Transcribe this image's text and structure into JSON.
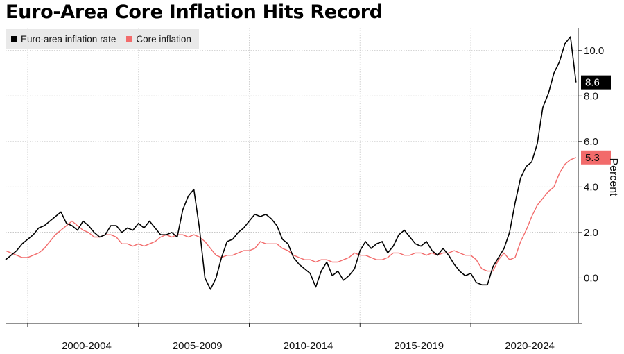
{
  "chart_data": {
    "type": "line",
    "title": "Euro-Area Core Inflation Hits Record",
    "ylabel": "Percent",
    "xlabel": "",
    "xlim": [
      1997.0,
      2022.85
    ],
    "ylim": [
      -2.0,
      11.0
    ],
    "yticks": [
      0.0,
      2.0,
      4.0,
      6.0,
      8.0,
      10.0
    ],
    "ytick_labels": [
      "0.0",
      "2.0",
      "4.0",
      "6.0",
      "8.0",
      "10.0"
    ],
    "xtick_positions": [
      1998,
      2003,
      2008,
      2013,
      2018
    ],
    "xtick_labels": [
      "2000-2004",
      "2005-2009",
      "2010-2014",
      "2015-2019",
      "2020-2024"
    ],
    "legend_position": "top-left",
    "series": [
      {
        "name": "Euro-area inflation rate",
        "color": "#000000",
        "end_label": "8.6",
        "x": [
          1997.0,
          1997.25,
          1997.5,
          1997.75,
          1998.0,
          1998.25,
          1998.5,
          1998.75,
          1999.0,
          1999.25,
          1999.5,
          1999.75,
          2000.0,
          2000.25,
          2000.5,
          2000.75,
          2001.0,
          2001.25,
          2001.5,
          2001.75,
          2002.0,
          2002.25,
          2002.5,
          2002.75,
          2003.0,
          2003.25,
          2003.5,
          2003.75,
          2004.0,
          2004.25,
          2004.5,
          2004.75,
          2005.0,
          2005.25,
          2005.5,
          2005.75,
          2006.0,
          2006.25,
          2006.5,
          2006.75,
          2007.0,
          2007.25,
          2007.5,
          2007.75,
          2008.0,
          2008.25,
          2008.5,
          2008.75,
          2009.0,
          2009.25,
          2009.5,
          2009.75,
          2010.0,
          2010.25,
          2010.5,
          2010.75,
          2011.0,
          2011.25,
          2011.5,
          2011.75,
          2012.0,
          2012.25,
          2012.5,
          2012.75,
          2013.0,
          2013.25,
          2013.5,
          2013.75,
          2014.0,
          2014.25,
          2014.5,
          2014.75,
          2015.0,
          2015.25,
          2015.5,
          2015.75,
          2016.0,
          2016.25,
          2016.5,
          2016.75,
          2017.0,
          2017.25,
          2017.5,
          2017.75,
          2018.0,
          2018.25,
          2018.5,
          2018.75,
          2019.0,
          2019.25,
          2019.5,
          2019.75,
          2020.0,
          2020.25,
          2020.5,
          2020.75,
          2021.0,
          2021.25,
          2021.5,
          2021.75,
          2022.0,
          2022.25,
          2022.5,
          2022.75
        ],
        "values": [
          0.8,
          1.0,
          1.2,
          1.5,
          1.7,
          1.9,
          2.2,
          2.3,
          2.5,
          2.7,
          2.9,
          2.4,
          2.3,
          2.1,
          2.5,
          2.3,
          2.0,
          1.8,
          1.9,
          2.3,
          2.3,
          2.0,
          2.2,
          2.1,
          2.4,
          2.2,
          2.5,
          2.2,
          1.9,
          1.9,
          2.0,
          1.8,
          3.0,
          3.6,
          3.9,
          2.2,
          0.0,
          -0.5,
          0.0,
          0.9,
          1.6,
          1.7,
          2.0,
          2.2,
          2.5,
          2.8,
          2.7,
          2.8,
          2.6,
          2.3,
          1.7,
          1.5,
          0.9,
          0.6,
          0.4,
          0.2,
          -0.4,
          0.3,
          0.7,
          0.1,
          0.3,
          -0.1,
          0.1,
          0.4,
          1.2,
          1.6,
          1.3,
          1.5,
          1.6,
          1.1,
          1.4,
          1.9,
          2.1,
          1.8,
          1.5,
          1.4,
          1.6,
          1.2,
          1.0,
          1.3,
          1.0,
          0.6,
          0.3,
          0.1,
          0.2,
          -0.2,
          -0.3,
          -0.3,
          0.5,
          0.9,
          1.3,
          2.0,
          3.3,
          4.4,
          4.9,
          5.1,
          5.9,
          7.5,
          8.1,
          9.0,
          9.5,
          10.3,
          10.6,
          8.6
        ]
      },
      {
        "name": "Core inflation",
        "color": "#f26b6b",
        "end_label": "5.3",
        "x": [
          1997.0,
          1997.25,
          1997.5,
          1997.75,
          1998.0,
          1998.25,
          1998.5,
          1998.75,
          1999.0,
          1999.25,
          1999.5,
          1999.75,
          2000.0,
          2000.25,
          2000.5,
          2000.75,
          2001.0,
          2001.25,
          2001.5,
          2001.75,
          2002.0,
          2002.25,
          2002.5,
          2002.75,
          2003.0,
          2003.25,
          2003.5,
          2003.75,
          2004.0,
          2004.25,
          2004.5,
          2004.75,
          2005.0,
          2005.25,
          2005.5,
          2005.75,
          2006.0,
          2006.25,
          2006.5,
          2006.75,
          2007.0,
          2007.25,
          2007.5,
          2007.75,
          2008.0,
          2008.25,
          2008.5,
          2008.75,
          2009.0,
          2009.25,
          2009.5,
          2009.75,
          2010.0,
          2010.25,
          2010.5,
          2010.75,
          2011.0,
          2011.25,
          2011.5,
          2011.75,
          2012.0,
          2012.25,
          2012.5,
          2012.75,
          2013.0,
          2013.25,
          2013.5,
          2013.75,
          2014.0,
          2014.25,
          2014.5,
          2014.75,
          2015.0,
          2015.25,
          2015.5,
          2015.75,
          2016.0,
          2016.25,
          2016.5,
          2016.75,
          2017.0,
          2017.25,
          2017.5,
          2017.75,
          2018.0,
          2018.25,
          2018.5,
          2018.75,
          2019.0,
          2019.25,
          2019.5,
          2019.75,
          2020.0,
          2020.25,
          2020.5,
          2020.75,
          2021.0,
          2021.25,
          2021.5,
          2021.75,
          2022.0,
          2022.25,
          2022.5,
          2022.75
        ],
        "values": [
          1.2,
          1.1,
          1.0,
          0.9,
          0.9,
          1.0,
          1.1,
          1.3,
          1.6,
          1.9,
          2.1,
          2.3,
          2.5,
          2.3,
          2.1,
          2.0,
          1.8,
          1.8,
          1.9,
          1.9,
          1.8,
          1.5,
          1.5,
          1.4,
          1.5,
          1.4,
          1.5,
          1.6,
          1.8,
          1.9,
          1.8,
          1.9,
          1.9,
          1.8,
          1.9,
          1.8,
          1.6,
          1.3,
          1.0,
          0.9,
          1.0,
          1.0,
          1.1,
          1.2,
          1.2,
          1.3,
          1.6,
          1.5,
          1.5,
          1.5,
          1.3,
          1.2,
          1.0,
          0.9,
          0.8,
          0.8,
          0.7,
          0.8,
          0.8,
          0.7,
          0.7,
          0.8,
          0.9,
          1.1,
          1.0,
          1.0,
          0.9,
          0.8,
          0.8,
          0.9,
          1.1,
          1.1,
          1.0,
          1.0,
          1.1,
          1.1,
          1.0,
          1.1,
          1.0,
          1.1,
          1.1,
          1.2,
          1.1,
          1.0,
          1.0,
          0.8,
          0.4,
          0.3,
          0.3,
          0.8,
          1.1,
          0.8,
          0.9,
          1.6,
          2.1,
          2.7,
          3.2,
          3.5,
          3.8,
          4.0,
          4.6,
          5.0,
          5.2,
          5.3
        ]
      }
    ]
  }
}
